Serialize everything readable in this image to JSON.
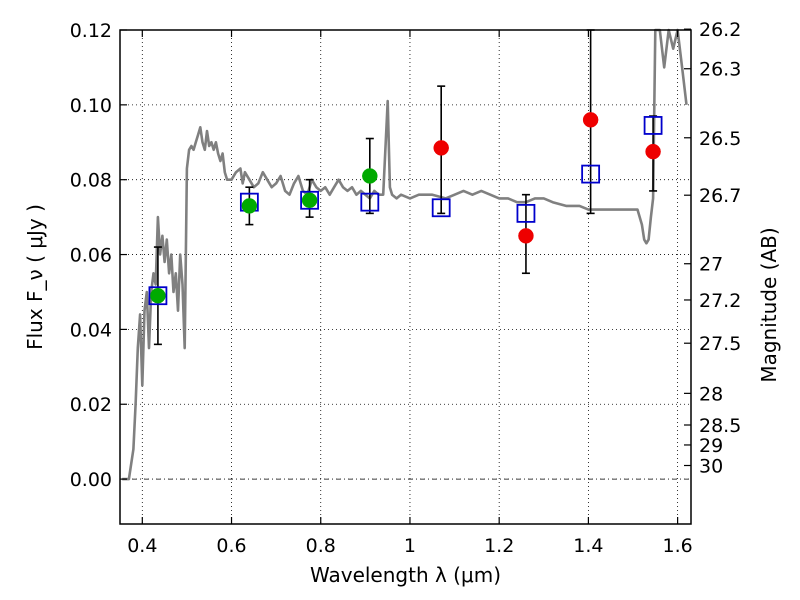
{
  "chart_data": {
    "type": "scatter",
    "xlabel": "Wavelength  λ (μm)",
    "ylabel": "Flux  F_ν  ( μJy )",
    "ylabel_right": "Magnitude (AB)",
    "xlim": [
      0.35,
      1.63
    ],
    "ylim": [
      -0.012,
      0.12
    ],
    "grid": true,
    "x_ticks": [
      0.4,
      0.6,
      0.8,
      1.0,
      1.2,
      1.4,
      1.6
    ],
    "x_tick_labels": [
      "0.4",
      "0.6",
      "0.8",
      "1",
      "1.2",
      "1.4",
      "1.6"
    ],
    "y_ticks": [
      0.0,
      0.02,
      0.04,
      0.06,
      0.08,
      0.1,
      0.12
    ],
    "y_tick_labels": [
      "0.00",
      "0.02",
      "0.04",
      "0.06",
      "0.08",
      "0.10",
      "0.12"
    ],
    "right_ticks_mag": [
      26.2,
      26.3,
      26.5,
      26.7,
      27,
      27.2,
      27.5,
      28,
      28.5,
      29,
      30
    ],
    "right_tick_labels": [
      "26.2",
      "26.3",
      "26.5",
      "26.7",
      "27",
      "27.2",
      "27.5",
      "28",
      "28.5",
      "29",
      "30"
    ],
    "colors": {
      "model": "#808080",
      "green": "#00aa00",
      "red": "#ee0000",
      "box": "#0000cc",
      "errbar": "#000000"
    },
    "series": [
      {
        "kind": "line",
        "color": "#808080",
        "x": [
          0.355,
          0.37,
          0.38,
          0.385,
          0.39,
          0.395,
          0.4,
          0.405,
          0.41,
          0.415,
          0.42,
          0.425,
          0.43,
          0.435,
          0.44,
          0.445,
          0.45,
          0.455,
          0.46,
          0.465,
          0.47,
          0.475,
          0.48,
          0.485,
          0.49,
          0.495,
          0.5,
          0.505,
          0.51,
          0.515,
          0.52,
          0.525,
          0.53,
          0.535,
          0.54,
          0.545,
          0.55,
          0.555,
          0.56,
          0.565,
          0.57,
          0.575,
          0.58,
          0.585,
          0.59,
          0.6,
          0.61,
          0.62,
          0.625,
          0.63,
          0.64,
          0.65,
          0.66,
          0.67,
          0.68,
          0.69,
          0.7,
          0.71,
          0.72,
          0.73,
          0.74,
          0.75,
          0.76,
          0.77,
          0.78,
          0.79,
          0.8,
          0.81,
          0.82,
          0.83,
          0.84,
          0.85,
          0.86,
          0.87,
          0.88,
          0.89,
          0.9,
          0.91,
          0.92,
          0.93,
          0.94,
          0.95,
          0.955,
          0.96,
          0.97,
          0.98,
          1.0,
          1.02,
          1.05,
          1.08,
          1.1,
          1.12,
          1.14,
          1.16,
          1.18,
          1.2,
          1.22,
          1.24,
          1.26,
          1.28,
          1.3,
          1.32,
          1.35,
          1.38,
          1.4,
          1.43,
          1.46,
          1.49,
          1.5,
          1.51,
          1.52,
          1.525,
          1.53,
          1.535,
          1.54,
          1.545,
          1.55,
          1.56,
          1.57,
          1.58,
          1.59,
          1.6,
          1.61,
          1.62
        ],
        "y": [
          0.0,
          0.0,
          0.008,
          0.02,
          0.035,
          0.044,
          0.025,
          0.045,
          0.05,
          0.035,
          0.05,
          0.055,
          0.052,
          0.07,
          0.06,
          0.065,
          0.058,
          0.064,
          0.055,
          0.06,
          0.05,
          0.055,
          0.045,
          0.06,
          0.052,
          0.035,
          0.083,
          0.088,
          0.089,
          0.088,
          0.09,
          0.092,
          0.094,
          0.09,
          0.088,
          0.093,
          0.089,
          0.09,
          0.088,
          0.09,
          0.087,
          0.085,
          0.087,
          0.082,
          0.08,
          0.08,
          0.082,
          0.083,
          0.079,
          0.082,
          0.08,
          0.078,
          0.079,
          0.082,
          0.08,
          0.078,
          0.079,
          0.081,
          0.077,
          0.076,
          0.079,
          0.081,
          0.077,
          0.076,
          0.08,
          0.078,
          0.077,
          0.078,
          0.076,
          0.078,
          0.08,
          0.078,
          0.077,
          0.078,
          0.076,
          0.077,
          0.076,
          0.075,
          0.077,
          0.076,
          0.076,
          0.101,
          0.078,
          0.076,
          0.075,
          0.076,
          0.075,
          0.076,
          0.076,
          0.075,
          0.076,
          0.077,
          0.076,
          0.077,
          0.076,
          0.075,
          0.075,
          0.074,
          0.074,
          0.075,
          0.075,
          0.074,
          0.073,
          0.073,
          0.072,
          0.072,
          0.072,
          0.072,
          0.072,
          0.072,
          0.068,
          0.064,
          0.063,
          0.064,
          0.07,
          0.075,
          0.12,
          0.12,
          0.11,
          0.12,
          0.115,
          0.12,
          0.11,
          0.1
        ]
      },
      {
        "kind": "errorbar",
        "color": "#000000",
        "points": [
          {
            "x": 0.435,
            "low": 0.036,
            "high": 0.062
          },
          {
            "x": 0.64,
            "low": 0.068,
            "high": 0.078
          },
          {
            "x": 0.775,
            "low": 0.07,
            "high": 0.08
          },
          {
            "x": 0.91,
            "low": 0.071,
            "high": 0.091
          },
          {
            "x": 1.07,
            "low": 0.071,
            "high": 0.105
          },
          {
            "x": 1.26,
            "low": 0.055,
            "high": 0.076
          },
          {
            "x": 1.405,
            "low": 0.071,
            "high": 0.12
          },
          {
            "x": 1.545,
            "low": 0.077,
            "high": 0.097
          }
        ]
      },
      {
        "kind": "square",
        "color": "#0000cc",
        "x": [
          0.435,
          0.64,
          0.775,
          0.91,
          1.07,
          1.26,
          1.405,
          1.545
        ],
        "y": [
          0.049,
          0.074,
          0.0745,
          0.074,
          0.0725,
          0.071,
          0.0815,
          0.0945
        ]
      },
      {
        "kind": "circle",
        "color": "#00aa00",
        "x": [
          0.435,
          0.64,
          0.775,
          0.91
        ],
        "y": [
          0.049,
          0.073,
          0.0745,
          0.081
        ]
      },
      {
        "kind": "circle",
        "color": "#ee0000",
        "x": [
          1.07,
          1.26,
          1.405,
          1.545
        ],
        "y": [
          0.0885,
          0.065,
          0.096,
          0.0875
        ]
      }
    ]
  }
}
